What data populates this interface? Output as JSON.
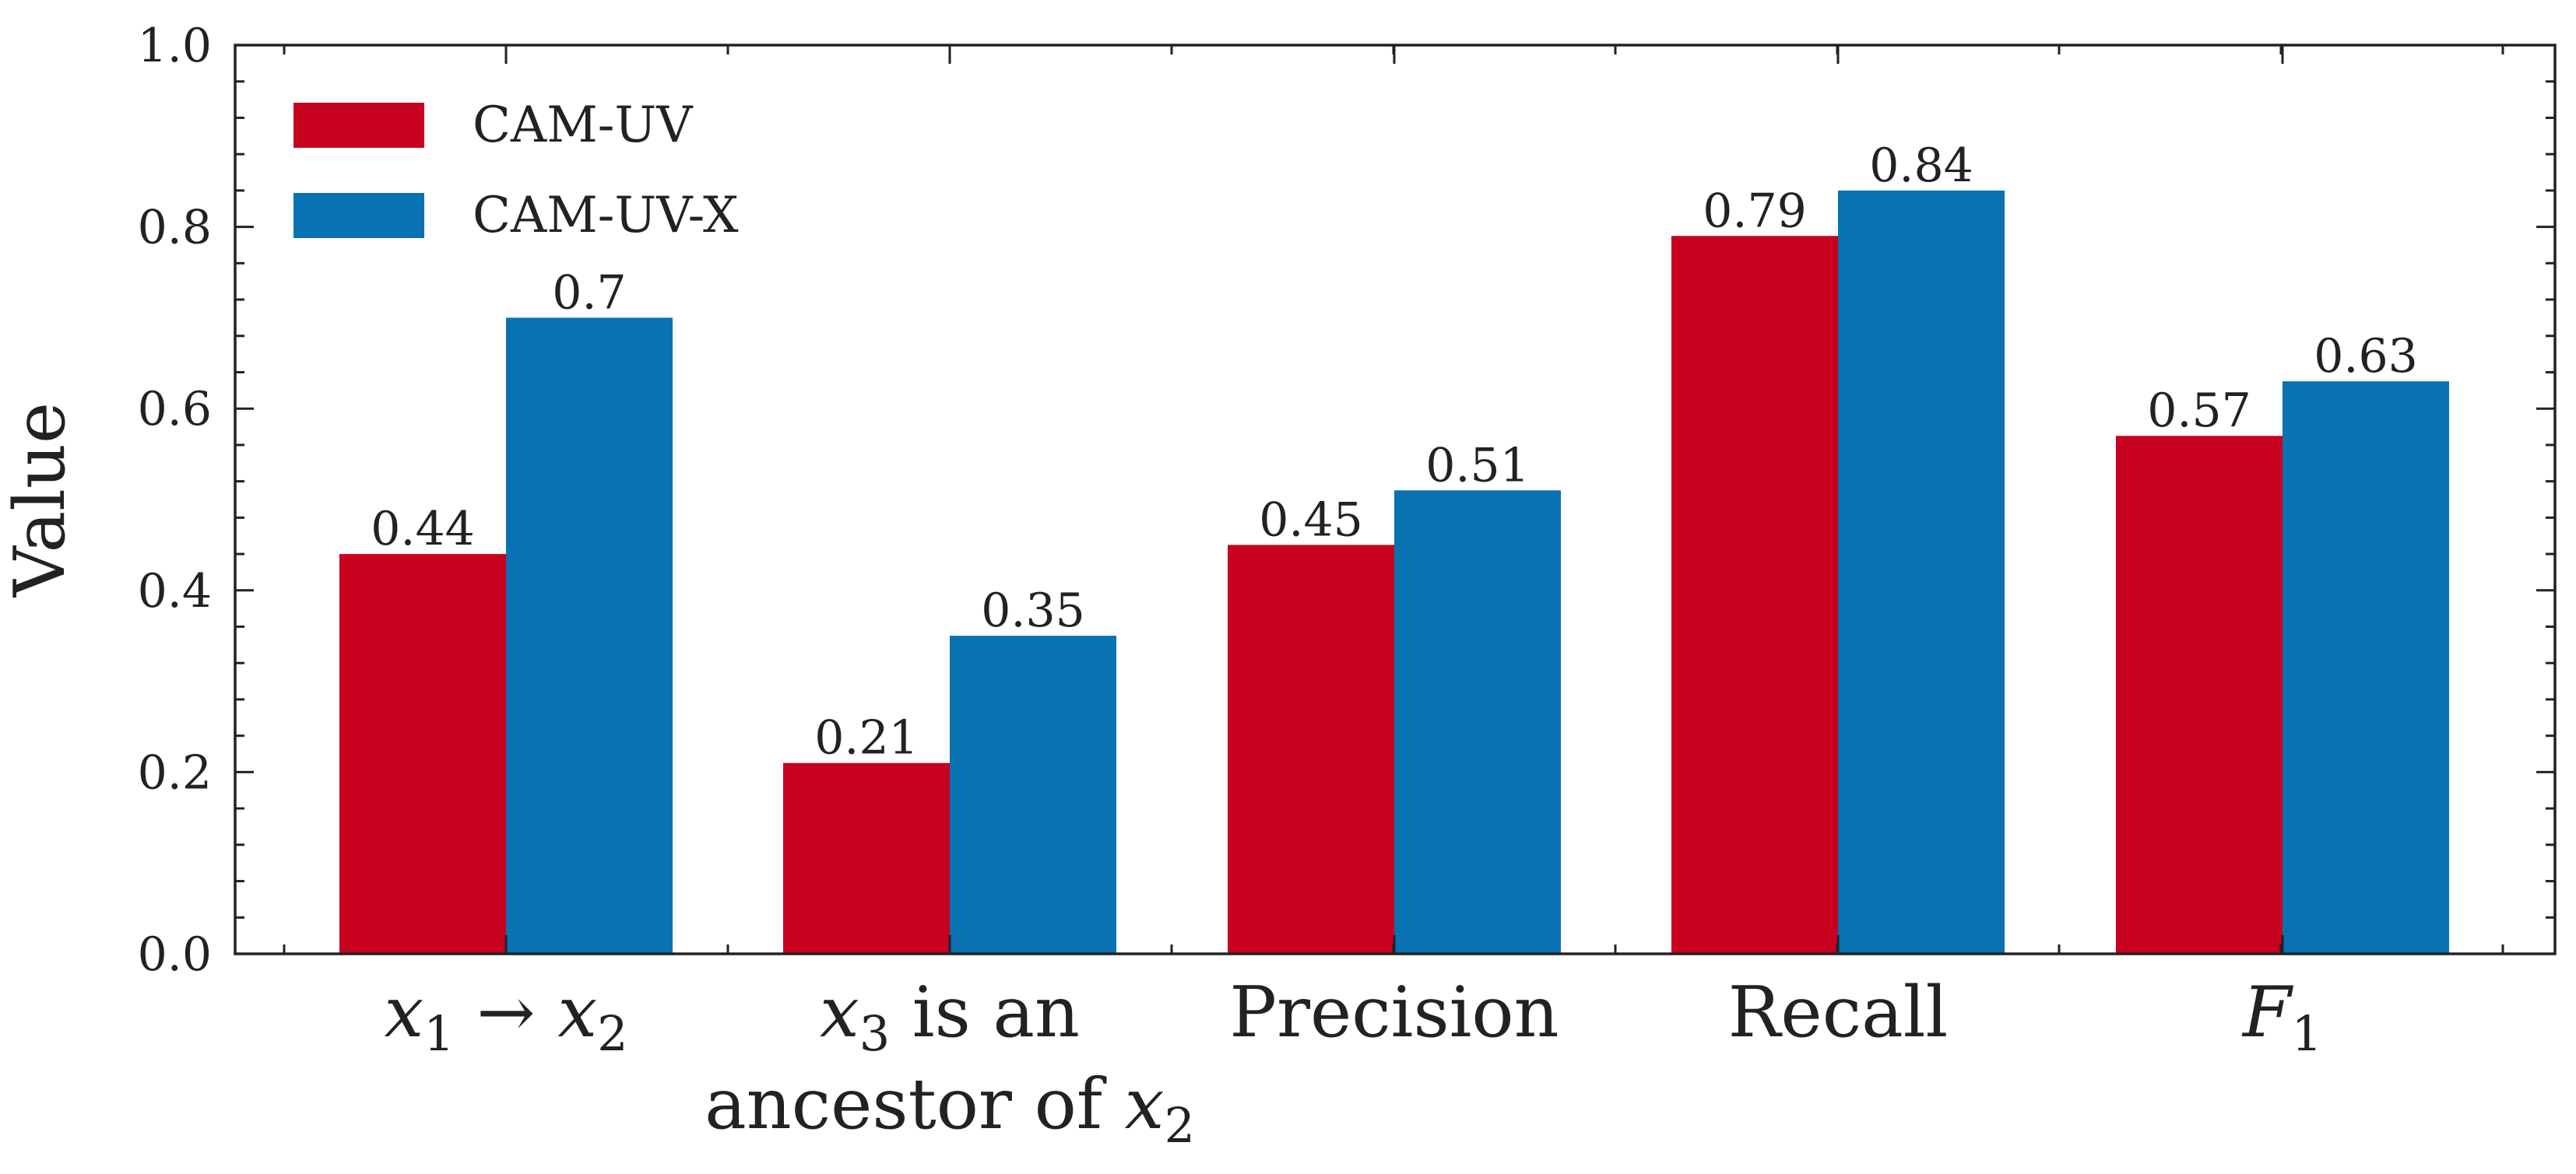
{
  "chart_data": {
    "type": "bar",
    "title": "",
    "xlabel": "",
    "ylabel": "Value",
    "ylim": [
      0.0,
      1.0
    ],
    "yticks": [
      "0.0",
      "0.2",
      "0.4",
      "0.6",
      "0.8",
      "1.0"
    ],
    "categories": [
      {
        "main": "x",
        "sub": "1",
        "arrow": "→",
        "main2": "x",
        "sub2": "2",
        "plain": ""
      },
      {
        "main": "x",
        "sub": "3",
        "rest": " is an",
        "line2": "ancestor of ",
        "main2": "x",
        "sub2": "2"
      },
      {
        "plain": "Precision"
      },
      {
        "plain": "Recall"
      },
      {
        "main": "F",
        "sub": "1"
      }
    ],
    "series": [
      {
        "name": "CAM-UV",
        "color": "#c8001f",
        "values": [
          0.44,
          0.21,
          0.45,
          0.79,
          0.57
        ],
        "labels": [
          "0.44",
          "0.21",
          "0.45",
          "0.79",
          "0.57"
        ]
      },
      {
        "name": "CAM-UV-X",
        "color": "#0872b2",
        "values": [
          0.7,
          0.35,
          0.51,
          0.84,
          0.63
        ],
        "labels": [
          "0.7",
          "0.35",
          "0.51",
          "0.84",
          "0.63"
        ]
      }
    ],
    "legend_position": "top-left",
    "grid": false
  }
}
